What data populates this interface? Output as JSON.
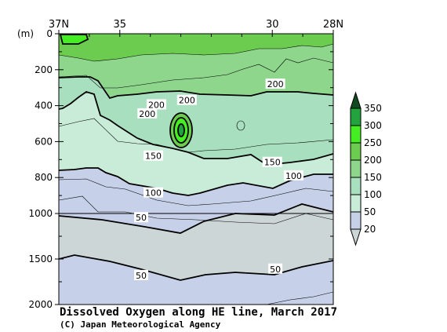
{
  "chart_data": {
    "type": "contour",
    "title": "Dissolved Oxygen along HE line, March 2017",
    "credit": "(C) Japan Meteorological Agency",
    "x_tick_labels": [
      "37N",
      "35",
      "30",
      "28N"
    ],
    "x_ticks_lat": [
      37,
      35,
      30,
      28
    ],
    "xlim": [
      37,
      28
    ],
    "y_unit_label": "(m)",
    "y_tick_labels": [
      "0",
      "200",
      "400",
      "600",
      "800",
      "1000",
      "1500",
      "2000"
    ],
    "y_ticks_depth": [
      0,
      200,
      400,
      600,
      800,
      1000,
      1500,
      2000
    ],
    "ylim": [
      0,
      2000
    ],
    "y_scale_note": "0-1000 m and 1000-2000 m drawn at different scales",
    "colorbar": {
      "levels": [
        20,
        50,
        100,
        150,
        200,
        250,
        300,
        350
      ],
      "labels": [
        "20",
        "50",
        "100",
        "150",
        "200",
        "250",
        "300",
        "350"
      ],
      "colors": [
        "#cdd6d7",
        "#c6d0e8",
        "#c8ecd8",
        "#a8e0bf",
        "#8ed68c",
        "#6ccc50",
        "#44ee22",
        "#22a33d",
        "#114a1f"
      ]
    },
    "contour_labels": [
      {
        "text": "200",
        "lat": 33.8,
        "depth": 395
      },
      {
        "text": "200",
        "lat": 32.8,
        "depth": 370
      },
      {
        "text": "200",
        "lat": 29.9,
        "depth": 280
      },
      {
        "text": "200",
        "lat": 34.1,
        "depth": 445
      },
      {
        "text": "150",
        "lat": 33.9,
        "depth": 680
      },
      {
        "text": "150",
        "lat": 30.0,
        "depth": 715
      },
      {
        "text": "100",
        "lat": 33.9,
        "depth": 885
      },
      {
        "text": "100",
        "lat": 29.3,
        "depth": 790
      },
      {
        "text": "50",
        "lat": 34.3,
        "depth": 1045
      },
      {
        "text": "50",
        "lat": 34.3,
        "depth": 1680
      },
      {
        "text": "50",
        "lat": 29.9,
        "depth": 1610
      }
    ]
  }
}
